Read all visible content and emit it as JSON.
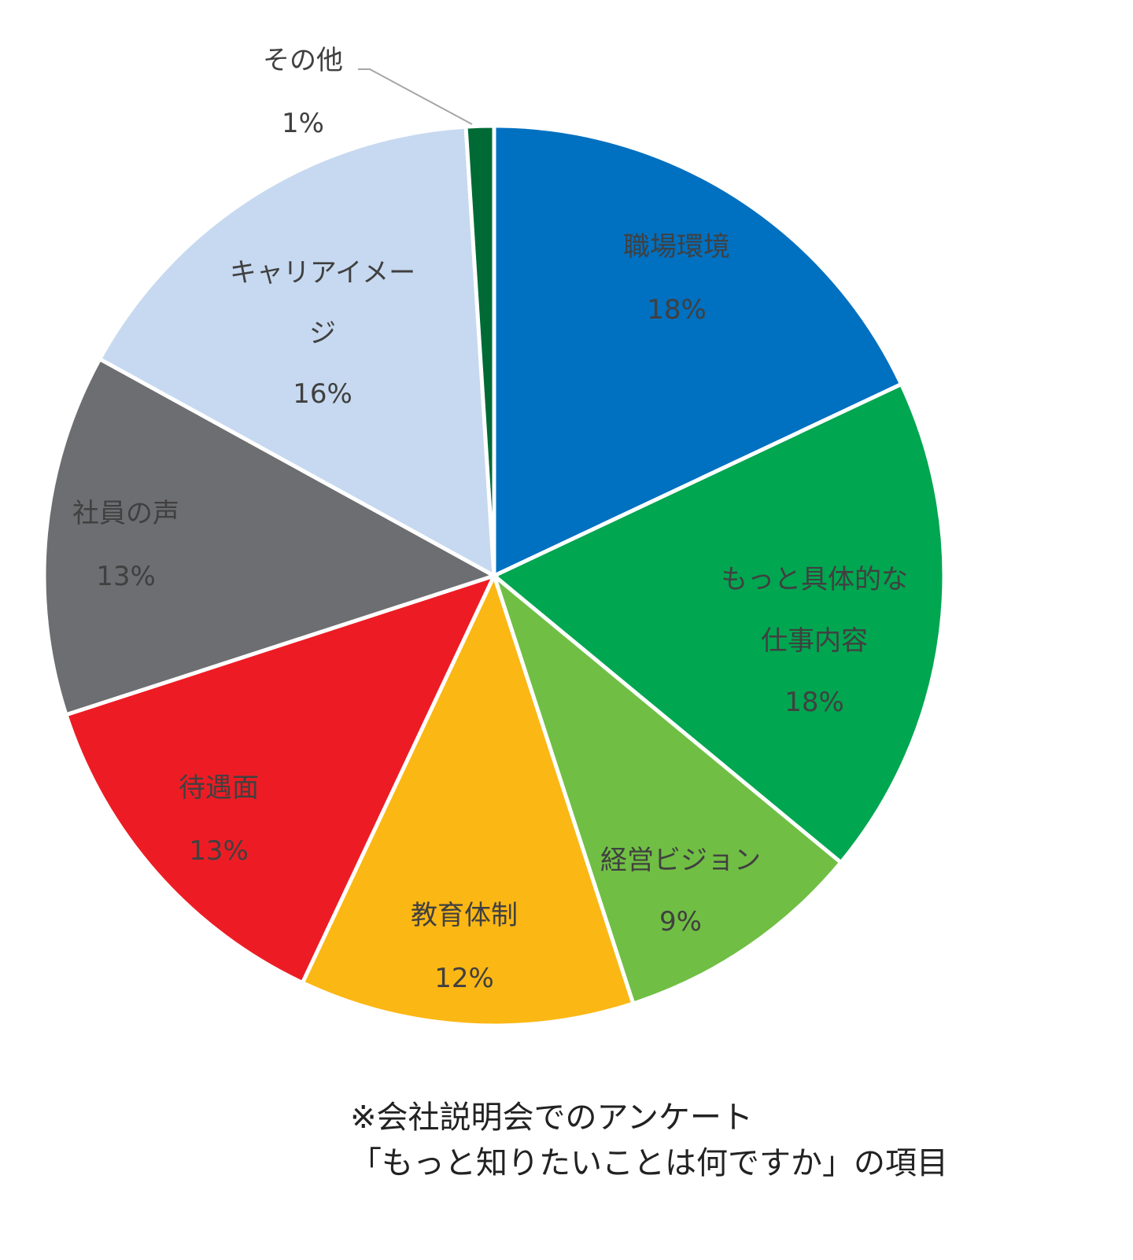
{
  "chart_data": {
    "type": "pie",
    "title": "",
    "slices": [
      {
        "label": "職場環境",
        "label_lines": [
          "職場環境"
        ],
        "value": 18,
        "value_label": "18%",
        "color": "#0070C0"
      },
      {
        "label": "もっと具体的な仕事内容",
        "label_lines": [
          "もっと具体的な",
          "仕事内容"
        ],
        "value": 18,
        "value_label": "18%",
        "color": "#00A650"
      },
      {
        "label": "経営ビジョン",
        "label_lines": [
          "経営ビジョン"
        ],
        "value": 9,
        "value_label": "9%",
        "color": "#70BF44"
      },
      {
        "label": "教育体制",
        "label_lines": [
          "教育体制"
        ],
        "value": 12,
        "value_label": "12%",
        "color": "#FBB714"
      },
      {
        "label": "待遇面",
        "label_lines": [
          "待遇面"
        ],
        "value": 13,
        "value_label": "13%",
        "color": "#ED1C24"
      },
      {
        "label": "社員の声",
        "label_lines": [
          "社員の声"
        ],
        "value": 13,
        "value_label": "13%",
        "color": "#6D6E71"
      },
      {
        "label": "キャリアイメージ",
        "label_lines": [
          "キャリアイメー",
          "ジ"
        ],
        "value": 16,
        "value_label": "16%",
        "color": "#C6D9F0"
      },
      {
        "label": "その他",
        "label_lines": [
          "その他"
        ],
        "value": 1,
        "value_label": "1%",
        "color": "#006A35"
      }
    ],
    "start": "12 o'clock, clockwise",
    "legend": "none"
  },
  "footnote": {
    "line1": "※会社説明会でのアンケート",
    "line2": "「もっと知りたいことは何ですか」の項目"
  }
}
